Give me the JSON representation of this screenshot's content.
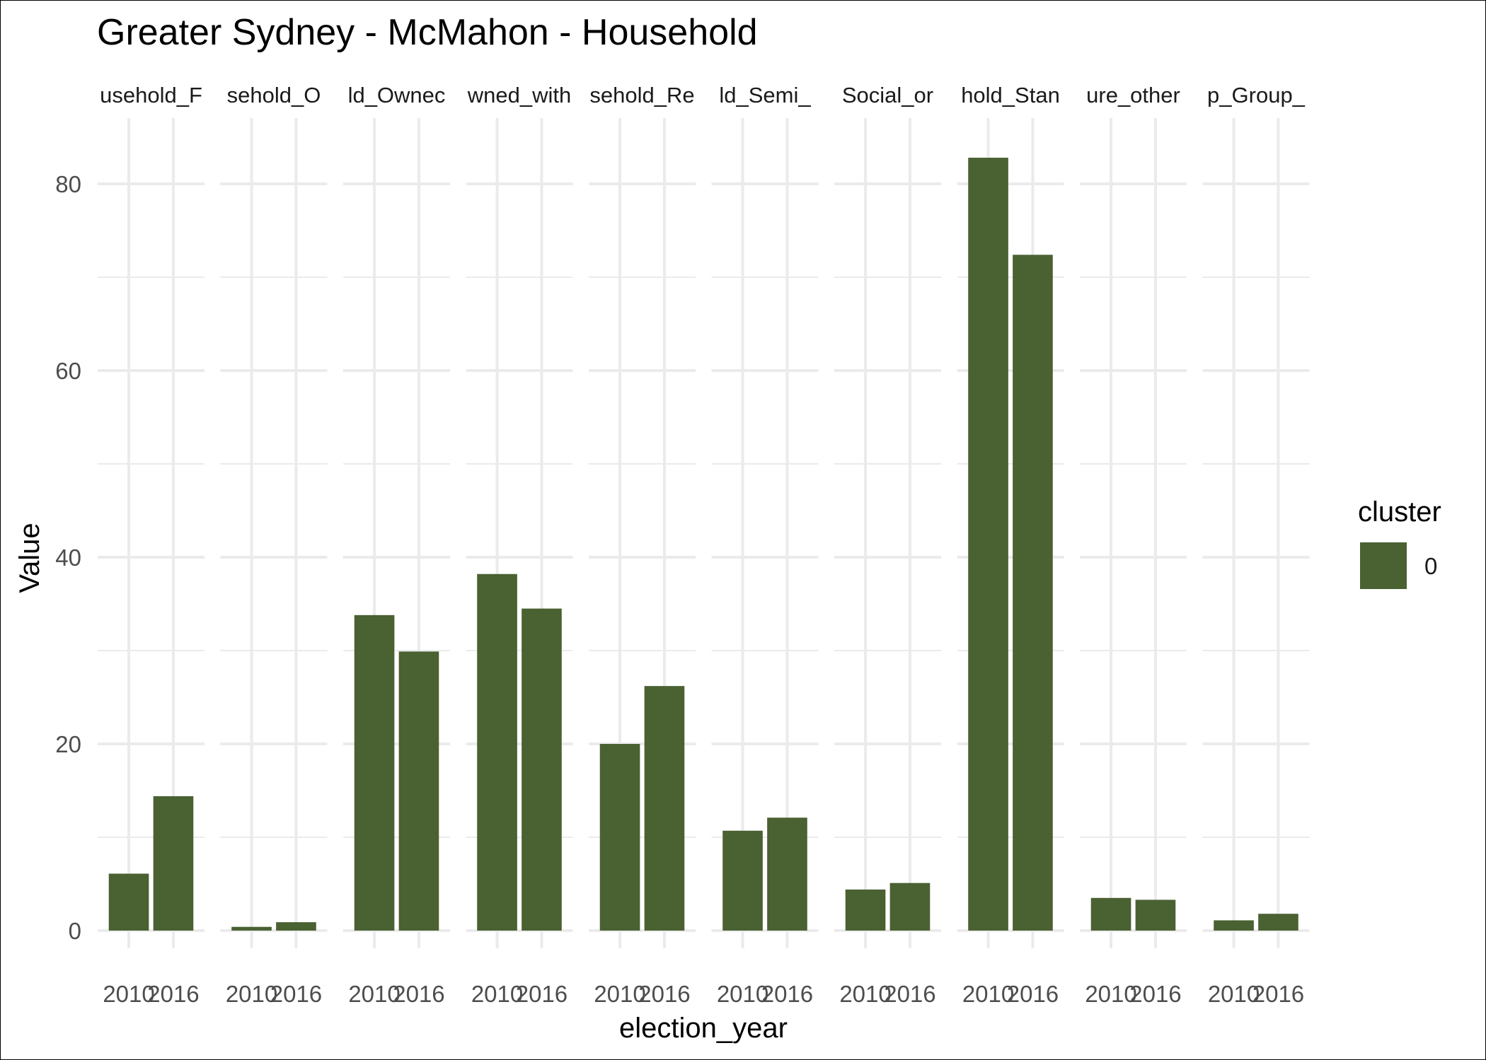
{
  "chart_data": {
    "type": "bar",
    "title": "Greater Sydney - McMahon - Household",
    "xlabel": "election_year",
    "ylabel": "Value",
    "ylim": [
      0,
      87
    ],
    "yticks": [
      0,
      20,
      40,
      60,
      80
    ],
    "grid": true,
    "facet_by": "variable",
    "categories": [
      "2010",
      "2016"
    ],
    "panels": [
      {
        "label": "usehold_F",
        "values": [
          6.1,
          14.4
        ]
      },
      {
        "label": "sehold_O",
        "values": [
          0.4,
          0.9
        ]
      },
      {
        "label": "ld_Ownec",
        "values": [
          33.8,
          29.9
        ]
      },
      {
        "label": "wned_with",
        "values": [
          38.2,
          34.5
        ]
      },
      {
        "label": "sehold_Re",
        "values": [
          20.0,
          26.2
        ]
      },
      {
        "label": "ld_Semi_",
        "values": [
          10.7,
          12.1
        ]
      },
      {
        "label": "Social_or",
        "values": [
          4.4,
          5.1
        ]
      },
      {
        "label": "hold_Stan",
        "values": [
          82.8,
          72.4
        ]
      },
      {
        "label": "ure_other",
        "values": [
          3.5,
          3.3
        ]
      },
      {
        "label": "p_Group_",
        "values": [
          1.1,
          1.8
        ]
      }
    ],
    "series": [
      {
        "name": "0",
        "color": "#4a6132"
      }
    ],
    "legend": {
      "title": "cluster",
      "position": "right",
      "entries": [
        {
          "label": "0",
          "color": "#4a6132"
        }
      ]
    }
  }
}
